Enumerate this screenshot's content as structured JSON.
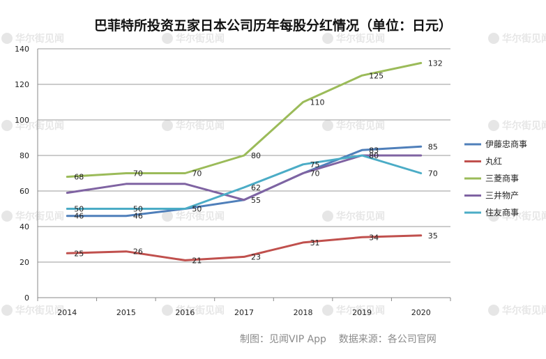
{
  "chart_data": {
    "type": "line",
    "title": "巴菲特所投资五家日本公司历年每股分红情况（单位：日元）",
    "xlabel": "",
    "ylabel": "",
    "x": [
      "2014",
      "2015",
      "2016",
      "2017",
      "2018",
      "2019",
      "2020"
    ],
    "ylim": [
      0,
      140
    ],
    "yticks": [
      0,
      20,
      40,
      60,
      80,
      100,
      120,
      140
    ],
    "grid": "horizontal",
    "legend_position": "right",
    "series": [
      {
        "name": "伊藤忠商事",
        "color": "#4f7fba",
        "values": [
          46,
          46,
          50,
          55,
          70,
          83,
          85
        ]
      },
      {
        "name": "丸红",
        "color": "#c0504d",
        "values": [
          25,
          26,
          21,
          23,
          31,
          34,
          35
        ]
      },
      {
        "name": "三菱商事",
        "color": "#9bbb59",
        "values": [
          68,
          70,
          70,
          80,
          110,
          125,
          132
        ]
      },
      {
        "name": "三井物产",
        "color": "#7f63a2",
        "values": [
          59,
          64,
          64,
          55,
          70,
          80,
          80
        ]
      },
      {
        "name": "住友商事",
        "color": "#4bacc6",
        "values": [
          50,
          50,
          50,
          62,
          75,
          80,
          70
        ]
      }
    ],
    "data_labels": [
      {
        "series": 0,
        "points": [
          0,
          1,
          3,
          5,
          6
        ]
      },
      {
        "series": 1,
        "points": [
          0,
          1,
          2,
          3,
          4,
          5,
          6
        ]
      },
      {
        "series": 2,
        "points": [
          0,
          1,
          2,
          3,
          4,
          5,
          6
        ]
      },
      {
        "series": 3,
        "points": [
          4,
          5
        ]
      },
      {
        "series": 4,
        "points": [
          0,
          1,
          2,
          3,
          4,
          6
        ]
      }
    ]
  },
  "credit": "制图：见闻VIP App    数据来源：各公司官网",
  "watermark": "华尔街见闻"
}
